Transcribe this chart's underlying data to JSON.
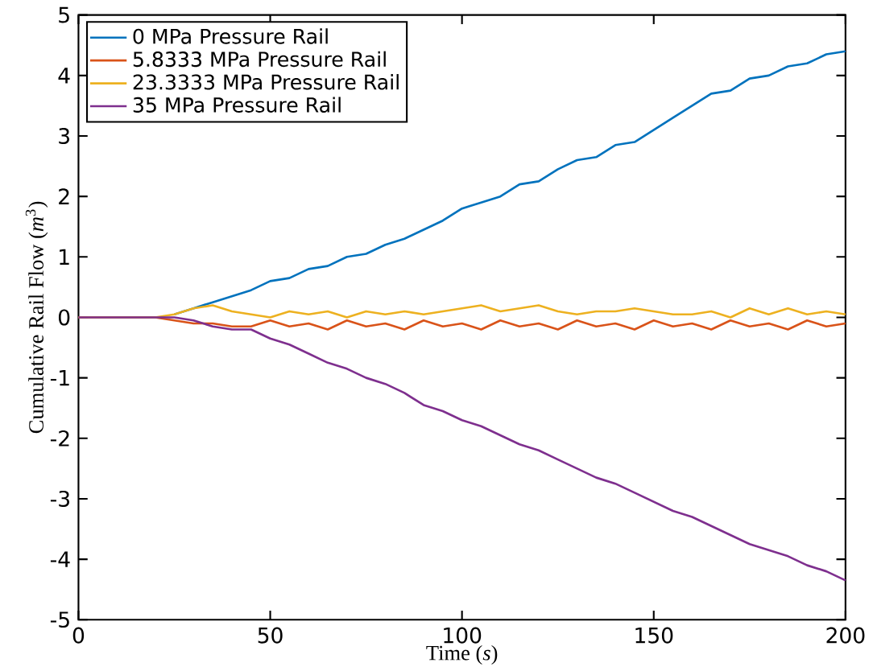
{
  "chart_data": {
    "type": "line",
    "xlabel": "Time (*s*)",
    "ylabel": "Cumulative Rail Flow (*m*$^{3}$)",
    "xlim": [
      0,
      200
    ],
    "ylim": [
      -5,
      5
    ],
    "xticks": [
      0,
      50,
      100,
      150,
      200
    ],
    "yticks": [
      -5,
      -4,
      -3,
      -2,
      -1,
      0,
      1,
      2,
      3,
      4,
      5
    ],
    "x": [
      0,
      20,
      25,
      30,
      35,
      40,
      45,
      50,
      55,
      60,
      65,
      70,
      75,
      80,
      85,
      90,
      95,
      100,
      105,
      110,
      115,
      120,
      125,
      130,
      135,
      140,
      145,
      150,
      155,
      160,
      165,
      170,
      175,
      180,
      185,
      190,
      195,
      200
    ],
    "legend": "top left",
    "grid": false,
    "marker": "none",
    "line_style": "solid",
    "series": [
      {
        "name": "0 MPa Pressure Rail",
        "color": "#0072bd",
        "values": [
          null,
          null,
          0.05,
          0.15,
          0.25,
          0.35,
          0.45,
          0.6,
          0.65,
          0.8,
          0.85,
          1.0,
          1.05,
          1.2,
          1.3,
          1.45,
          1.6,
          1.8,
          1.9,
          2.0,
          2.2,
          2.25,
          2.45,
          2.6,
          2.65,
          2.85,
          2.9,
          3.1,
          3.3,
          3.5,
          3.7,
          3.75,
          3.95,
          4.0,
          4.15,
          4.2,
          4.35,
          4.4
        ]
      },
      {
        "name": "5.8333 MPa Pressure Rail",
        "color": "#d95319",
        "values": [
          0,
          0,
          -0.05,
          -0.1,
          -0.1,
          -0.15,
          -0.15,
          -0.05,
          -0.15,
          -0.1,
          -0.2,
          -0.05,
          -0.15,
          -0.1,
          -0.2,
          -0.05,
          -0.15,
          -0.1,
          -0.2,
          -0.05,
          -0.15,
          -0.1,
          -0.2,
          -0.05,
          -0.15,
          -0.1,
          -0.2,
          -0.05,
          -0.15,
          -0.1,
          -0.2,
          -0.05,
          -0.15,
          -0.1,
          -0.2,
          -0.05,
          -0.15,
          -0.1
        ]
      },
      {
        "name": "23.3333 MPa Pressure Rail",
        "color": "#edb120",
        "values": [
          0,
          0,
          0.05,
          0.15,
          0.2,
          0.1,
          0.05,
          0.0,
          0.1,
          0.05,
          0.1,
          0.0,
          0.1,
          0.05,
          0.1,
          0.05,
          0.1,
          0.15,
          0.2,
          0.1,
          0.15,
          0.2,
          0.1,
          0.05,
          0.1,
          0.1,
          0.15,
          0.1,
          0.05,
          0.05,
          0.1,
          0.0,
          0.15,
          0.05,
          0.15,
          0.05,
          0.1,
          0.05
        ]
      },
      {
        "name": "35 MPa Pressure Rail",
        "color": "#7e2f8e",
        "values": [
          0,
          0,
          0,
          -0.05,
          -0.15,
          -0.2,
          -0.2,
          -0.35,
          -0.45,
          -0.6,
          -0.75,
          -0.85,
          -1.0,
          -1.1,
          -1.25,
          -1.45,
          -1.55,
          -1.7,
          -1.8,
          -1.95,
          -2.1,
          -2.2,
          -2.35,
          -2.5,
          -2.65,
          -2.75,
          -2.9,
          -3.05,
          -3.2,
          -3.3,
          -3.45,
          -3.6,
          -3.75,
          -3.85,
          -3.95,
          -4.1,
          -4.2,
          -4.35
        ]
      }
    ]
  }
}
